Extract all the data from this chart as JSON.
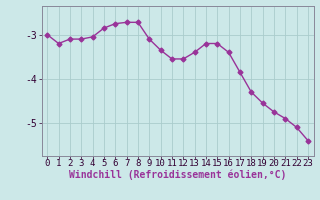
{
  "x": [
    0,
    1,
    2,
    3,
    4,
    5,
    6,
    7,
    8,
    9,
    10,
    11,
    12,
    13,
    14,
    15,
    16,
    17,
    18,
    19,
    20,
    21,
    22,
    23
  ],
  "y": [
    -3.0,
    -3.2,
    -3.1,
    -3.1,
    -3.05,
    -2.85,
    -2.75,
    -2.72,
    -2.72,
    -3.1,
    -3.35,
    -3.55,
    -3.55,
    -3.4,
    -3.2,
    -3.2,
    -3.4,
    -3.85,
    -4.3,
    -4.55,
    -4.75,
    -4.9,
    -5.1,
    -5.4
  ],
  "line_color": "#993399",
  "marker": "D",
  "markersize": 2.5,
  "linewidth": 1.0,
  "bg_color": "#cce8e8",
  "grid_color": "#aacccc",
  "xlabel": "Windchill (Refroidissement éolien,°C)",
  "xlabel_fontsize": 7,
  "yticks": [
    -3,
    -4,
    -5
  ],
  "xtick_labels": [
    "0",
    "1",
    "2",
    "3",
    "4",
    "5",
    "6",
    "7",
    "8",
    "9",
    "10",
    "11",
    "12",
    "13",
    "14",
    "15",
    "16",
    "17",
    "18",
    "19",
    "20",
    "21",
    "22",
    "23"
  ],
  "ylim": [
    -5.75,
    -2.35
  ],
  "xlim": [
    -0.5,
    23.5
  ],
  "tick_fontsize": 6.5
}
